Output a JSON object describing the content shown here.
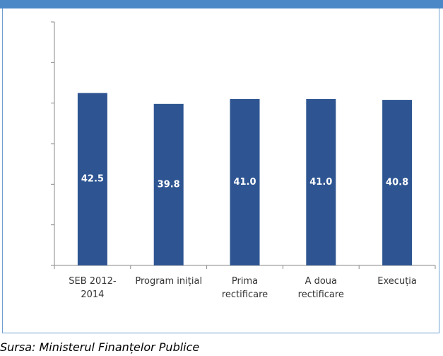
{
  "header": {
    "bar_color": "#4a88c8",
    "border_color": "#6f9fd0"
  },
  "chart_data": {
    "type": "bar",
    "categories": [
      [
        "SEB 2012-",
        "2014"
      ],
      [
        "Program inițial"
      ],
      [
        "Prima",
        "rectificare"
      ],
      [
        "A doua",
        "rectificare"
      ],
      [
        "Execuția"
      ]
    ],
    "values": [
      42.5,
      39.8,
      41.0,
      41.0,
      40.8
    ],
    "value_labels": [
      "42.5",
      "39.8",
      "41.0",
      "41.0",
      "40.8"
    ],
    "ylim": [
      0,
      60
    ],
    "y_tick_count": 6,
    "y_tick_labels_shown": false,
    "grid": false,
    "bar_color": "#2e5592",
    "label_color": "#ffffff"
  },
  "source": {
    "text": "Sursa: Ministerul Finanțelor Publice"
  }
}
